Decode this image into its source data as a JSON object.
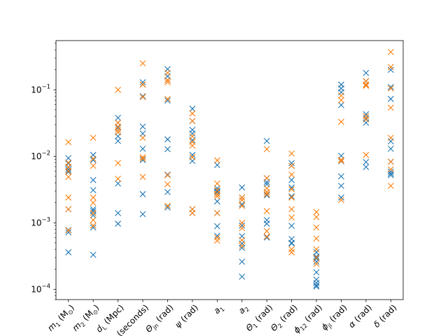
{
  "chart_data": {
    "type": "scatter",
    "title": "",
    "xlabel": "",
    "ylabel": "",
    "yscale": "log",
    "ylim": [
      7e-05,
      0.55
    ],
    "y_ticks": [
      {
        "value": 0.0001,
        "base": "10",
        "exp": "−4"
      },
      {
        "value": 0.001,
        "base": "10",
        "exp": "−3"
      },
      {
        "value": 0.01,
        "base": "10",
        "exp": "−2"
      },
      {
        "value": 0.1,
        "base": "10",
        "exp": "−1"
      }
    ],
    "grid": false,
    "legend": "none",
    "colors": {
      "series_a": "#1f77b4",
      "series_b": "#ff7f0e"
    },
    "categories": [
      {
        "label": "m",
        "sub": "1",
        "unit": " (M",
        "unit_sub": "⊙",
        "unit_end": ")"
      },
      {
        "label": "m",
        "sub": "2",
        "unit": " (M",
        "unit_sub": "⊙",
        "unit_end": ")"
      },
      {
        "label": "d",
        "sub": "L",
        "unit": " (Mpc)",
        "unit_sub": "",
        "unit_end": ""
      },
      {
        "label": "t",
        "sub": "c",
        "unit": " (seconds)",
        "unit_sub": "",
        "unit_end": ""
      },
      {
        "label": "Θ",
        "sub": "jn",
        "unit": " (rad)",
        "unit_sub": "",
        "unit_end": ""
      },
      {
        "label": "ψ",
        "sub": "",
        "unit": " (rad)",
        "unit_sub": "",
        "unit_end": ""
      },
      {
        "label": "a",
        "sub": "1",
        "unit": "",
        "unit_sub": "",
        "unit_end": ""
      },
      {
        "label": "a",
        "sub": "2",
        "unit": "",
        "unit_sub": "",
        "unit_end": ""
      },
      {
        "label": "Θ",
        "sub": "1",
        "unit": " (rad)",
        "unit_sub": "",
        "unit_end": ""
      },
      {
        "label": "Θ",
        "sub": "2",
        "unit": " (rad)",
        "unit_sub": "",
        "unit_end": ""
      },
      {
        "label": "ϕ",
        "sub": "12",
        "unit": " (rad)",
        "unit_sub": "",
        "unit_end": ""
      },
      {
        "label": "ϕ",
        "sub": "jl",
        "unit": " (rad)",
        "unit_sub": "",
        "unit_end": ""
      },
      {
        "label": "α",
        "sub": "",
        "unit": " (rad)",
        "unit_sub": "",
        "unit_end": ""
      },
      {
        "label": "δ",
        "sub": "",
        "unit": " (rad)",
        "unit_sub": "",
        "unit_end": ""
      }
    ],
    "series": [
      {
        "color": "#1f77b4",
        "values": [
          [
            0.0094,
            0.0078,
            0.0068,
            0.0063,
            0.0058,
            0.0016,
            0.00078,
            0.00072,
            0.00036
          ],
          [
            0.0105,
            0.0088,
            0.0044,
            0.0031,
            0.0016,
            0.0015,
            0.0013,
            0.00085,
            0.00033
          ],
          [
            0.038,
            0.032,
            0.027,
            0.023,
            0.02,
            0.017,
            0.0039,
            0.0014,
            0.00097
          ],
          [
            0.13,
            0.12,
            0.08,
            0.028,
            0.022,
            0.013,
            0.0088,
            0.0027,
            0.00135
          ],
          [
            0.205,
            0.16,
            0.14,
            0.069,
            0.018,
            0.0128,
            0.0053,
            0.0029,
            0.0017
          ],
          [
            0.052,
            0.034,
            0.025,
            0.022,
            0.0175,
            0.0105,
            0.0085,
            0.0016,
            0.0014
          ],
          [
            0.0074,
            0.0033,
            0.003,
            0.0029,
            0.0027,
            0.0021,
            0.0014,
            0.00089,
            0.00064
          ],
          [
            0.0034,
            0.0024,
            0.0019,
            0.00091,
            0.00063,
            0.00049,
            0.00042,
            0.00026,
            0.000155
          ],
          [
            0.017,
            0.0047,
            0.0041,
            0.0038,
            0.0029,
            0.0026,
            0.0011,
            0.00097,
            0.0006
          ],
          [
            0.0079,
            0.0072,
            0.0044,
            0.0034,
            0.0025,
            0.0009,
            0.00057,
            0.0005,
            0.00049
          ],
          [
            0.00036,
            0.00031,
            0.00029,
            0.00026,
            0.00018,
            0.00014,
            0.000125,
            0.000115,
            0.00011
          ],
          [
            0.12,
            0.105,
            0.092,
            0.059,
            0.0102,
            0.0084,
            0.005,
            0.0036,
            0.0024
          ],
          [
            0.18,
            0.135,
            0.12,
            0.043,
            0.04,
            0.037,
            0.032,
            0.0082,
            0.0069
          ],
          [
            0.2,
            0.11,
            0.073,
            0.0168,
            0.013,
            0.0083,
            0.0059,
            0.0055,
            0.0052
          ]
        ]
      },
      {
        "color": "#ff7f0e",
        "values": [
          [
            0.0163,
            0.008,
            0.0069,
            0.006,
            0.0049,
            0.0024,
            0.0016,
            0.00077
          ],
          [
            0.019,
            0.0092,
            0.0072,
            0.0024,
            0.002,
            0.0014,
            0.0011,
            0.00091
          ],
          [
            0.1,
            0.032,
            0.028,
            0.025,
            0.023,
            0.0079,
            0.0046
          ],
          [
            0.25,
            0.12,
            0.078,
            0.019,
            0.0097,
            0.0092,
            0.0049
          ],
          [
            0.18,
            0.14,
            0.13,
            0.073,
            0.0052,
            0.0038,
            0.0018
          ],
          [
            0.044,
            0.034,
            0.02,
            0.0165,
            0.0145,
            0.0097,
            0.0016,
            0.0014
          ],
          [
            0.0087,
            0.0039,
            0.0031,
            0.0027,
            0.0025,
            0.0014,
            0.0006,
            0.00054
          ],
          [
            0.0024,
            0.0022,
            0.0018,
            0.001,
            0.00083,
            0.00055,
            0.00045
          ],
          [
            0.0128,
            0.0047,
            0.0033,
            0.0029,
            0.0027,
            0.0015,
            0.00075,
            0.00062
          ],
          [
            0.011,
            0.0072,
            0.0053,
            0.0032,
            0.0024,
            0.0016,
            0.0012,
            0.0004,
            0.00036
          ],
          [
            0.00145,
            0.00122,
            0.00085,
            0.00058,
            0.0004,
            0.0003,
            0.00024
          ],
          [
            0.082,
            0.07,
            0.033,
            0.0089,
            0.0085,
            0.0022
          ],
          [
            0.135,
            0.12,
            0.115,
            0.04,
            0.036,
            0.0105
          ],
          [
            0.37,
            0.22,
            0.105,
            0.054,
            0.019,
            0.0083,
            0.0064,
            0.0036
          ]
        ]
      }
    ]
  }
}
